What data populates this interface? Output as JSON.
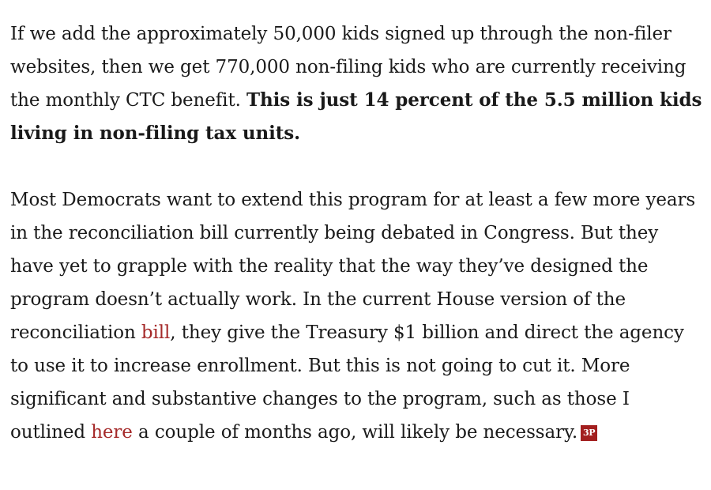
{
  "paragraphs": {
    "p1": {
      "text": "If we add the approximately 50,000 kids signed up through the non-filer websites, then we get 770,000 non-filing kids who are currently receiving the monthly CTC benefit. ",
      "bold": "This is just 14 percent of the 5.5 million kids living in non-filing tax units."
    },
    "p2": {
      "text_a": "Most Democrats want to extend this program for at least a few more years in the reconciliation bill currently being debated in Congress. But they have yet to grapple with the reality that the way they’ve designed the program doesn’t actually work. In the current House version of the reconciliation ",
      "link_bill": "bill",
      "text_b": ", they give the Treasury $1 billion and direct the agency to use it to increase enrollment. But this is not going to cut it. More significant and substantive changes to the program, such as those I outlined ",
      "link_here": "here",
      "text_c": " a couple of months ago, will likely be necessary.",
      "end_badge": "3P"
    }
  },
  "colors": {
    "link": "#a52a2a",
    "badge_bg": "#a31f1f",
    "text": "#1a1a1a"
  }
}
